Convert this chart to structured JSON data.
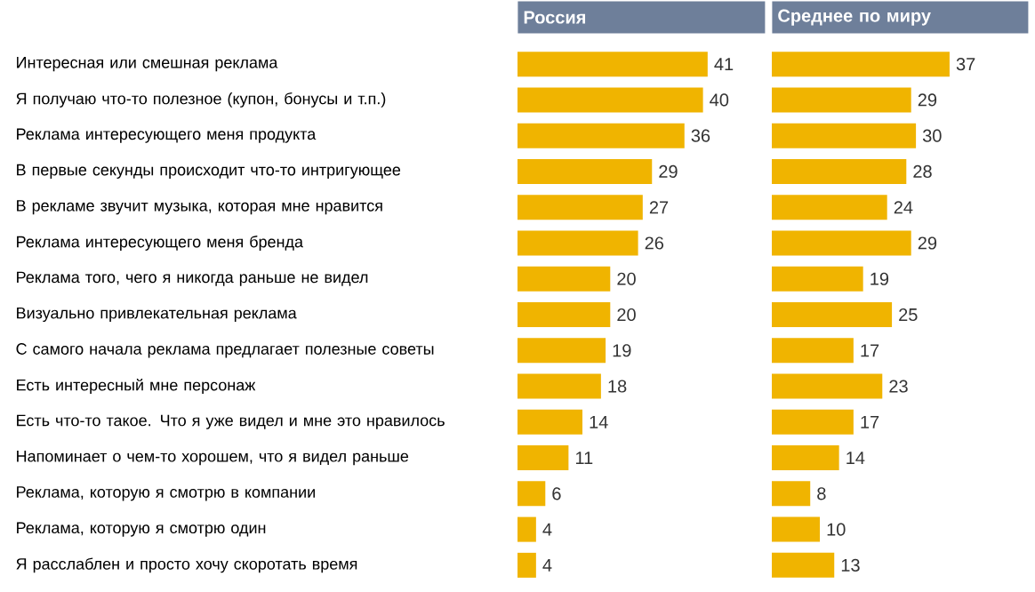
{
  "chart_data": [
    {
      "type": "bar",
      "orientation": "horizontal",
      "title": "Россия",
      "tick_labels": "y",
      "data_labels": true,
      "color": "#f0b400",
      "categories": [
        "Интересная или смешная реклама",
        "Я получаю что-то полезное (купон, бонусы и т.п.)",
        "Реклама интересующего меня продукта",
        "В первые секунды происходит что-то интригующее",
        "В рекламе звучит музыка, которая мне нравится",
        "Реклама интересующего меня бренда",
        "Реклама того, чего я никогда раньше не видел",
        "Визуально привлекательная реклама",
        "С самого начала реклама предлагает полезные советы",
        "Есть интересный мне персонаж",
        "Есть что-то такое. Что я уже видел и мне это нравилось",
        "Напоминает о чем-то хорошем, что я видел раньше",
        "Реклама, которую я смотрю в компании",
        "Реклама, которую я смотрю один",
        "Я расслаблен и просто хочу скоротать время"
      ],
      "values": [
        41,
        40,
        36,
        29,
        27,
        26,
        20,
        20,
        19,
        18,
        14,
        11,
        6,
        4,
        4
      ]
    },
    {
      "type": "bar",
      "orientation": "horizontal",
      "title": "Среднее по миру",
      "tick_labels": false,
      "data_labels": true,
      "color": "#f0b400",
      "categories": [
        null,
        null,
        null,
        null,
        null,
        null,
        null,
        null,
        null,
        null,
        null,
        null,
        null,
        null,
        null
      ],
      "values": [
        37,
        29,
        30,
        28,
        24,
        29,
        19,
        25,
        17,
        23,
        17,
        14,
        8,
        10,
        13
      ]
    }
  ]
}
